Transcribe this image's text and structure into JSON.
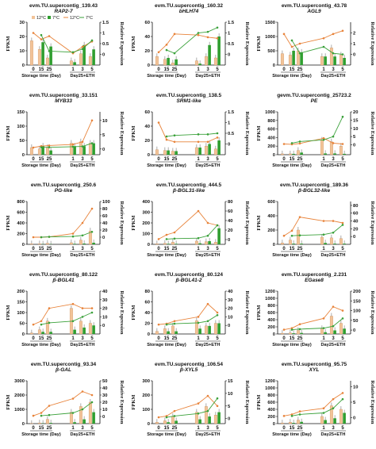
{
  "colors": {
    "c12": "#e8833a",
    "c7": "#3aa13a",
    "bar12": "#f2c398",
    "bar7": "#2f9e2f"
  },
  "legend": {
    "c12": "12°C",
    "c7": "7°C"
  },
  "common": {
    "ylabel_left": "FPKM",
    "ylabel_right": "Relative Expression",
    "xgroup1": "Storage time (Day)",
    "xgroup2": "Day25+ETH"
  },
  "chart_data": [
    {
      "type": "bar+line",
      "title": "evm.TU.supercontig_139.43",
      "subtitle": "RAP2-7",
      "x": [
        "0",
        "15",
        "25",
        "1",
        "3",
        "5"
      ],
      "ylim_left": [
        0,
        30
      ],
      "ylim_right": [
        -0.5,
        1.5
      ],
      "left_ticks": [
        0,
        10,
        20,
        30
      ],
      "right_ticks": [
        0,
        0.5,
        1,
        1.5
      ],
      "show_legend": true,
      "bars12": [
        17,
        11,
        5,
        3,
        8,
        6
      ],
      "bars7": [
        null,
        16,
        13,
        2,
        14,
        11
      ],
      "line12": [
        1,
        0.7,
        0.85,
        0.05,
        0.35,
        0.6
      ],
      "line7": [
        null,
        0.9,
        0.15,
        0.1,
        0.25,
        0.65
      ]
    },
    {
      "type": "bar+line",
      "title": "evm.TU.supercontig_160.32",
      "subtitle": "bHLH74",
      "x": [
        "0",
        "15",
        "25",
        "1",
        "3",
        "5"
      ],
      "ylim_left": [
        0,
        60
      ],
      "ylim_right": [
        -0.5,
        1.5
      ],
      "left_ticks": [
        0,
        20,
        40,
        60
      ],
      "right_ticks": [
        0,
        0.5,
        1,
        1.5
      ],
      "show_legend": false,
      "bars12": [
        12,
        8,
        3,
        6,
        12,
        10
      ],
      "bars7": [
        null,
        10,
        8,
        2,
        28,
        40
      ],
      "line12": [
        0.1,
        0.45,
        0.95,
        0.9,
        0.8,
        0.75
      ],
      "line7": [
        null,
        0.2,
        0.05,
        1.0,
        1.05,
        1.25
      ]
    },
    {
      "type": "bar+line",
      "title": "evm.TU.supercontig_43.78",
      "subtitle": "AGL9",
      "x": [
        "0",
        "15",
        "25",
        "1",
        "3",
        "5"
      ],
      "ylim_left": [
        0,
        1500
      ],
      "ylim_right": [
        -1,
        3
      ],
      "left_ticks": [
        0,
        500,
        1000,
        1500
      ],
      "right_ticks": [
        0,
        1,
        2
      ],
      "show_legend": false,
      "bars12": [
        400,
        350,
        500,
        300,
        600,
        350
      ],
      "bars7": [
        null,
        500,
        450,
        300,
        300,
        250
      ],
      "line12": [
        1.9,
        0.7,
        1.0,
        1.5,
        1.9,
        2.2
      ],
      "line7": [
        null,
        1.3,
        0.1,
        0.7,
        0.1,
        0.0
      ]
    },
    {
      "type": "bar+line",
      "title": "evm.TU.supercontig_33.151",
      "subtitle": "MYB33",
      "x": [
        "0",
        "15",
        "25",
        "1",
        "3",
        "5"
      ],
      "ylim_left": [
        0,
        150
      ],
      "ylim_right": [
        -2,
        13
      ],
      "left_ticks": [
        0,
        50,
        100,
        150
      ],
      "right_ticks": [
        0,
        5,
        10
      ],
      "show_legend": false,
      "bars12": [
        25,
        20,
        25,
        40,
        45,
        40
      ],
      "bars7": [
        null,
        30,
        15,
        30,
        30,
        40
      ],
      "line12": [
        0.5,
        1,
        1.2,
        1.6,
        2.5,
        10
      ],
      "line7": [
        null,
        0.6,
        0.6,
        0.8,
        0.9,
        2
      ]
    },
    {
      "type": "bar+line",
      "title": "evm.TU.supercontig_138.5",
      "subtitle": "SRM1-like",
      "x": [
        "0",
        "15",
        "25",
        "1",
        "3",
        "5"
      ],
      "ylim_left": [
        0,
        60
      ],
      "ylim_right": [
        -0.5,
        1.5
      ],
      "left_ticks": [
        0,
        20,
        40,
        60
      ],
      "right_ticks": [
        0,
        0.5,
        1,
        1.5
      ],
      "show_legend": false,
      "bars12": [
        7,
        6,
        5,
        10,
        12,
        8
      ],
      "bars7": [
        null,
        6,
        5,
        10,
        15,
        20
      ],
      "line12": [
        1,
        0.2,
        0.1,
        0.1,
        0.1,
        0.3
      ],
      "line7": [
        null,
        0.35,
        0.4,
        0.45,
        0.45,
        0.5
      ]
    },
    {
      "type": "bar+line",
      "title": "gevm.TU.supercontig_25723.2",
      "subtitle": "PE",
      "x": [
        "0",
        "15",
        "25",
        "1",
        "3",
        "5"
      ],
      "ylim_left": [
        0,
        1000
      ],
      "ylim_right": [
        -6,
        20
      ],
      "left_ticks": [
        0,
        200,
        400,
        600,
        800,
        1000
      ],
      "right_ticks": [
        0,
        5,
        10,
        15,
        20
      ],
      "show_legend": false,
      "bars12": [
        20,
        20,
        100,
        340,
        300,
        200
      ],
      "bars7": [
        null,
        20,
        50,
        30,
        30,
        20
      ],
      "line12": [
        0.5,
        0.3,
        0.8,
        4,
        1,
        0.5
      ],
      "line7": [
        null,
        1,
        2,
        3,
        5,
        17
      ]
    },
    {
      "type": "bar+line",
      "title": "evm.TU.supercontig_250.6",
      "subtitle": "PG-like",
      "x": [
        "0",
        "15",
        "25",
        "1",
        "3",
        "5"
      ],
      "ylim_left": [
        0,
        800
      ],
      "ylim_right": [
        -20,
        100
      ],
      "left_ticks": [
        0,
        200,
        400,
        600,
        800
      ],
      "right_ticks": [
        0,
        20,
        40,
        60,
        80,
        100
      ],
      "show_legend": false,
      "bars12": [
        10,
        10,
        20,
        30,
        80,
        250
      ],
      "bars7": [
        null,
        5,
        5,
        10,
        15,
        30
      ],
      "line12": [
        0,
        0,
        1,
        10,
        40,
        80
      ],
      "line7": [
        null,
        0,
        1,
        2,
        5,
        15
      ]
    },
    {
      "type": "bar+line",
      "title": "evm.TU.supercontig_444.5",
      "subtitle": "β-BGL31-like",
      "x": [
        "0",
        "15",
        "25",
        "1",
        "3",
        "5"
      ],
      "ylim_left": [
        0,
        400
      ],
      "ylim_right": [
        -10,
        80
      ],
      "left_ticks": [
        0,
        100,
        200,
        300,
        400
      ],
      "right_ticks": [
        0,
        20,
        40,
        60,
        80
      ],
      "show_legend": false,
      "bars12": [
        5,
        10,
        20,
        30,
        25,
        20
      ],
      "bars7": [
        null,
        5,
        5,
        10,
        30,
        150
      ],
      "line12": [
        1,
        10,
        15,
        60,
        35,
        30
      ],
      "line7": [
        null,
        1,
        2,
        3,
        8,
        30
      ]
    },
    {
      "type": "bar+line",
      "title": "evm.TU.supercontig_189.36",
      "subtitle": "β-BGL32-like",
      "x": [
        "0",
        "15",
        "25",
        "1",
        "3",
        "5"
      ],
      "ylim_left": [
        0,
        600
      ],
      "ylim_right": [
        -20,
        90
      ],
      "left_ticks": [
        0,
        200,
        400,
        600
      ],
      "right_ticks": [
        0,
        20,
        40,
        60,
        80
      ],
      "show_legend": false,
      "bars12": [
        20,
        60,
        200,
        100,
        90,
        80
      ],
      "bars7": [
        null,
        10,
        10,
        20,
        10,
        10
      ],
      "line12": [
        2,
        15,
        50,
        40,
        40,
        35
      ],
      "line7": [
        null,
        2,
        3,
        5,
        10,
        30
      ]
    },
    {
      "type": "bar+line",
      "title": "evm.TU.supercontig_80.122",
      "subtitle": "β-BGL41",
      "x": [
        "0",
        "15",
        "25",
        "1",
        "3",
        "5"
      ],
      "ylim_left": [
        0,
        200
      ],
      "ylim_right": [
        -10,
        40
      ],
      "left_ticks": [
        0,
        50,
        100,
        150,
        200
      ],
      "right_ticks": [
        0,
        10,
        20,
        30,
        40
      ],
      "show_legend": false,
      "bars12": [
        5,
        20,
        60,
        120,
        60,
        50
      ],
      "bars7": [
        null,
        10,
        10,
        20,
        30,
        40
      ],
      "line12": [
        1,
        5,
        20,
        25,
        20,
        20
      ],
      "line7": [
        null,
        1,
        3,
        5,
        10,
        15
      ]
    },
    {
      "type": "bar+line",
      "title": "evm.TU.supercontig_80.124",
      "subtitle": "β-BGL41-2",
      "x": [
        "0",
        "15",
        "25",
        "1",
        "3",
        "5"
      ],
      "ylim_left": [
        0,
        80
      ],
      "ylim_right": [
        -10,
        40
      ],
      "left_ticks": [
        0,
        20,
        40,
        60,
        80
      ],
      "right_ticks": [
        0,
        10,
        20,
        30,
        40
      ],
      "show_legend": false,
      "bars12": [
        5,
        10,
        15,
        25,
        15,
        20
      ],
      "bars7": [
        null,
        5,
        5,
        10,
        15,
        20
      ],
      "line12": [
        1,
        2,
        5,
        10,
        25,
        15
      ],
      "line7": [
        null,
        1,
        2,
        3,
        5,
        12
      ]
    },
    {
      "type": "bar+line",
      "title": "evm.TU.supercontig_2.231",
      "subtitle": "EGase8",
      "x": [
        "0",
        "15",
        "25",
        "1",
        "3",
        "5"
      ],
      "ylim_left": [
        0,
        1200
      ],
      "ylim_right": [
        -20,
        200
      ],
      "left_ticks": [
        0,
        200,
        400,
        600,
        800,
        1000,
        1200
      ],
      "right_ticks": [
        0,
        50,
        100,
        150,
        200
      ],
      "show_legend": false,
      "bars12": [
        20,
        30,
        100,
        150,
        500,
        300
      ],
      "bars7": [
        null,
        20,
        30,
        50,
        100,
        150
      ],
      "line12": [
        2,
        10,
        30,
        60,
        120,
        100
      ],
      "line7": [
        null,
        2,
        5,
        10,
        20,
        60
      ]
    },
    {
      "type": "bar+line",
      "title": "evm.TU.supercontig_93.34",
      "subtitle": "β-GAL",
      "x": [
        "0",
        "15",
        "25",
        "1",
        "3",
        "5"
      ],
      "ylim_left": [
        0,
        3000
      ],
      "ylim_right": [
        -10,
        50
      ],
      "left_ticks": [
        0,
        1000,
        2000,
        3000
      ],
      "right_ticks": [
        0,
        10,
        20,
        30,
        40,
        50
      ],
      "show_legend": false,
      "bars12": [
        10,
        50,
        300,
        800,
        1200,
        1500
      ],
      "bars7": [
        null,
        20,
        50,
        100,
        300,
        800
      ],
      "line12": [
        1,
        5,
        15,
        25,
        35,
        30
      ],
      "line7": [
        null,
        1,
        2,
        5,
        10,
        20
      ]
    },
    {
      "type": "bar+line",
      "title": "evm.TU.supercontig_106.54",
      "subtitle": "β-XYL5",
      "x": [
        "0",
        "15",
        "25",
        "1",
        "3",
        "5"
      ],
      "ylim_left": [
        0,
        300
      ],
      "ylim_right": [
        -2,
        15
      ],
      "left_ticks": [
        0,
        100,
        200,
        300
      ],
      "right_ticks": [
        0,
        5,
        10,
        15
      ],
      "show_legend": false,
      "bars12": [
        10,
        20,
        50,
        80,
        120,
        60
      ],
      "bars7": [
        null,
        10,
        20,
        30,
        50,
        80
      ],
      "line12": [
        0.5,
        1,
        3,
        6,
        9,
        5
      ],
      "line7": [
        null,
        0.5,
        1,
        2,
        3,
        8
      ]
    },
    {
      "type": "bar+line",
      "title": "evm.TU.supercontig_95.75",
      "subtitle": "XYL",
      "x": [
        "0",
        "15",
        "25",
        "1",
        "3",
        "5"
      ],
      "ylim_left": [
        0,
        1200
      ],
      "ylim_right": [
        -2,
        12
      ],
      "left_ticks": [
        0,
        200,
        400,
        600,
        800,
        1000,
        1200
      ],
      "right_ticks": [
        0,
        5,
        10
      ],
      "show_legend": false,
      "bars12": [
        20,
        40,
        100,
        200,
        500,
        400
      ],
      "bars7": [
        null,
        20,
        50,
        100,
        150,
        300
      ],
      "line12": [
        0.5,
        1,
        2,
        3,
        6,
        8
      ],
      "line7": [
        null,
        0.5,
        1,
        1.5,
        3,
        6
      ]
    }
  ]
}
